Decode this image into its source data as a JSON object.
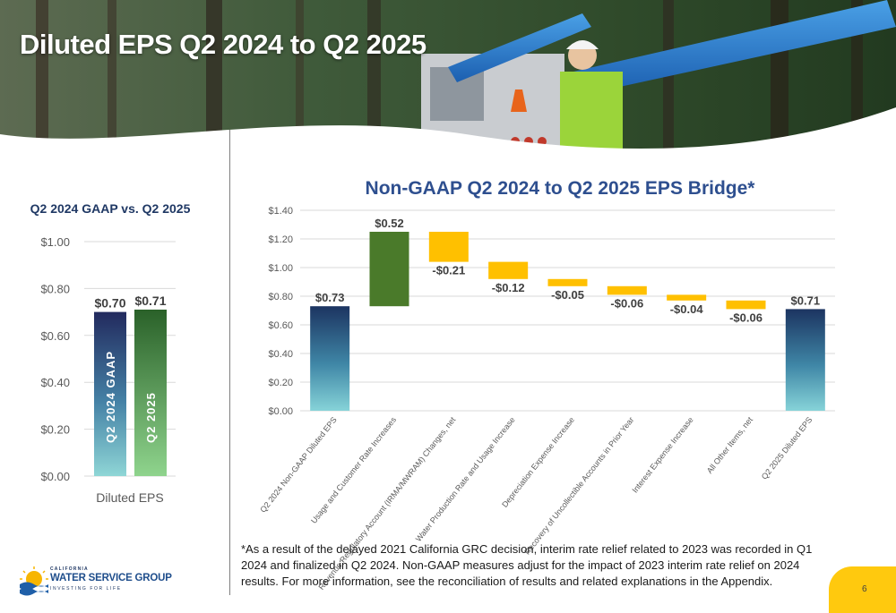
{
  "slide": {
    "title": "Diluted EPS Q2 2024 to Q2 2025",
    "page_number": "6",
    "footnote": "*As a result of the delayed 2021 California GRC decision, interim rate relief related to 2023 was recorded in Q1 2024 and finalized in Q2 2024. Non-GAAP measures adjust for the impact of 2023 interim rate relief on 2024 results.  For more information, see the reconciliation of results and related explanations in the Appendix.",
    "logo": {
      "top_text": "CALIFORNIA",
      "main_text": "WATER SERVICE GROUP",
      "tagline": "INVESTING FOR LIFE"
    }
  },
  "chart_data": [
    {
      "type": "bar",
      "title": "Q2 2024 GAAP vs. Q2 2025",
      "categories": [
        "Diluted EPS"
      ],
      "series": [
        {
          "name": "Q2 2024 GAAP",
          "values": [
            0.7
          ],
          "data_label": "$0.70"
        },
        {
          "name": "Q2 2025",
          "values": [
            0.71
          ],
          "data_label": "$0.71"
        }
      ],
      "y_ticks": [
        "$0.00",
        "$0.20",
        "$0.40",
        "$0.60",
        "$0.80",
        "$1.00"
      ],
      "ylim": [
        0,
        1.0
      ],
      "grid": true,
      "colors": {
        "Q2 2024 GAAP": "#1f3a6e",
        "Q2 2025": "#2e6b30"
      }
    },
    {
      "type": "bar",
      "subtype": "waterfall",
      "title": "Non-GAAP Q2 2024 to Q2 2025 EPS Bridge*",
      "categories": [
        "Q2 2024 Non-GAAP Diluted EPS",
        "Usage and Customer Rate Increases",
        "Revenue Regulatory Account (IRMA/MWRAM) Changes, net",
        "Water Production Rate and Usage Increase",
        "Depreciation Expense Increase",
        "Recovery of Uncollectible Accounts in Prior Year",
        "Interest Expense Increase",
        "All Other Items, net",
        "Q2 2025 Diluted EPS"
      ],
      "values": [
        0.73,
        0.52,
        -0.21,
        -0.12,
        -0.05,
        -0.06,
        -0.04,
        -0.06,
        0.71
      ],
      "data_labels": [
        "$0.73",
        "$0.52",
        "-$0.21",
        "-$0.12",
        "-$0.05",
        "-$0.06",
        "-$0.04",
        "-$0.06",
        "$0.71"
      ],
      "bar_kinds": [
        "total",
        "increase",
        "decrease",
        "decrease",
        "decrease",
        "decrease",
        "decrease",
        "decrease",
        "total"
      ],
      "y_ticks": [
        "$0.00",
        "$0.20",
        "$0.40",
        "$0.60",
        "$0.80",
        "$1.00",
        "$1.20",
        "$1.40"
      ],
      "ylim": [
        0,
        1.4
      ],
      "grid": true,
      "colors": {
        "total": "#1f3a6e",
        "increase": "#4a7a2a",
        "decrease": "#ffc000"
      }
    }
  ]
}
